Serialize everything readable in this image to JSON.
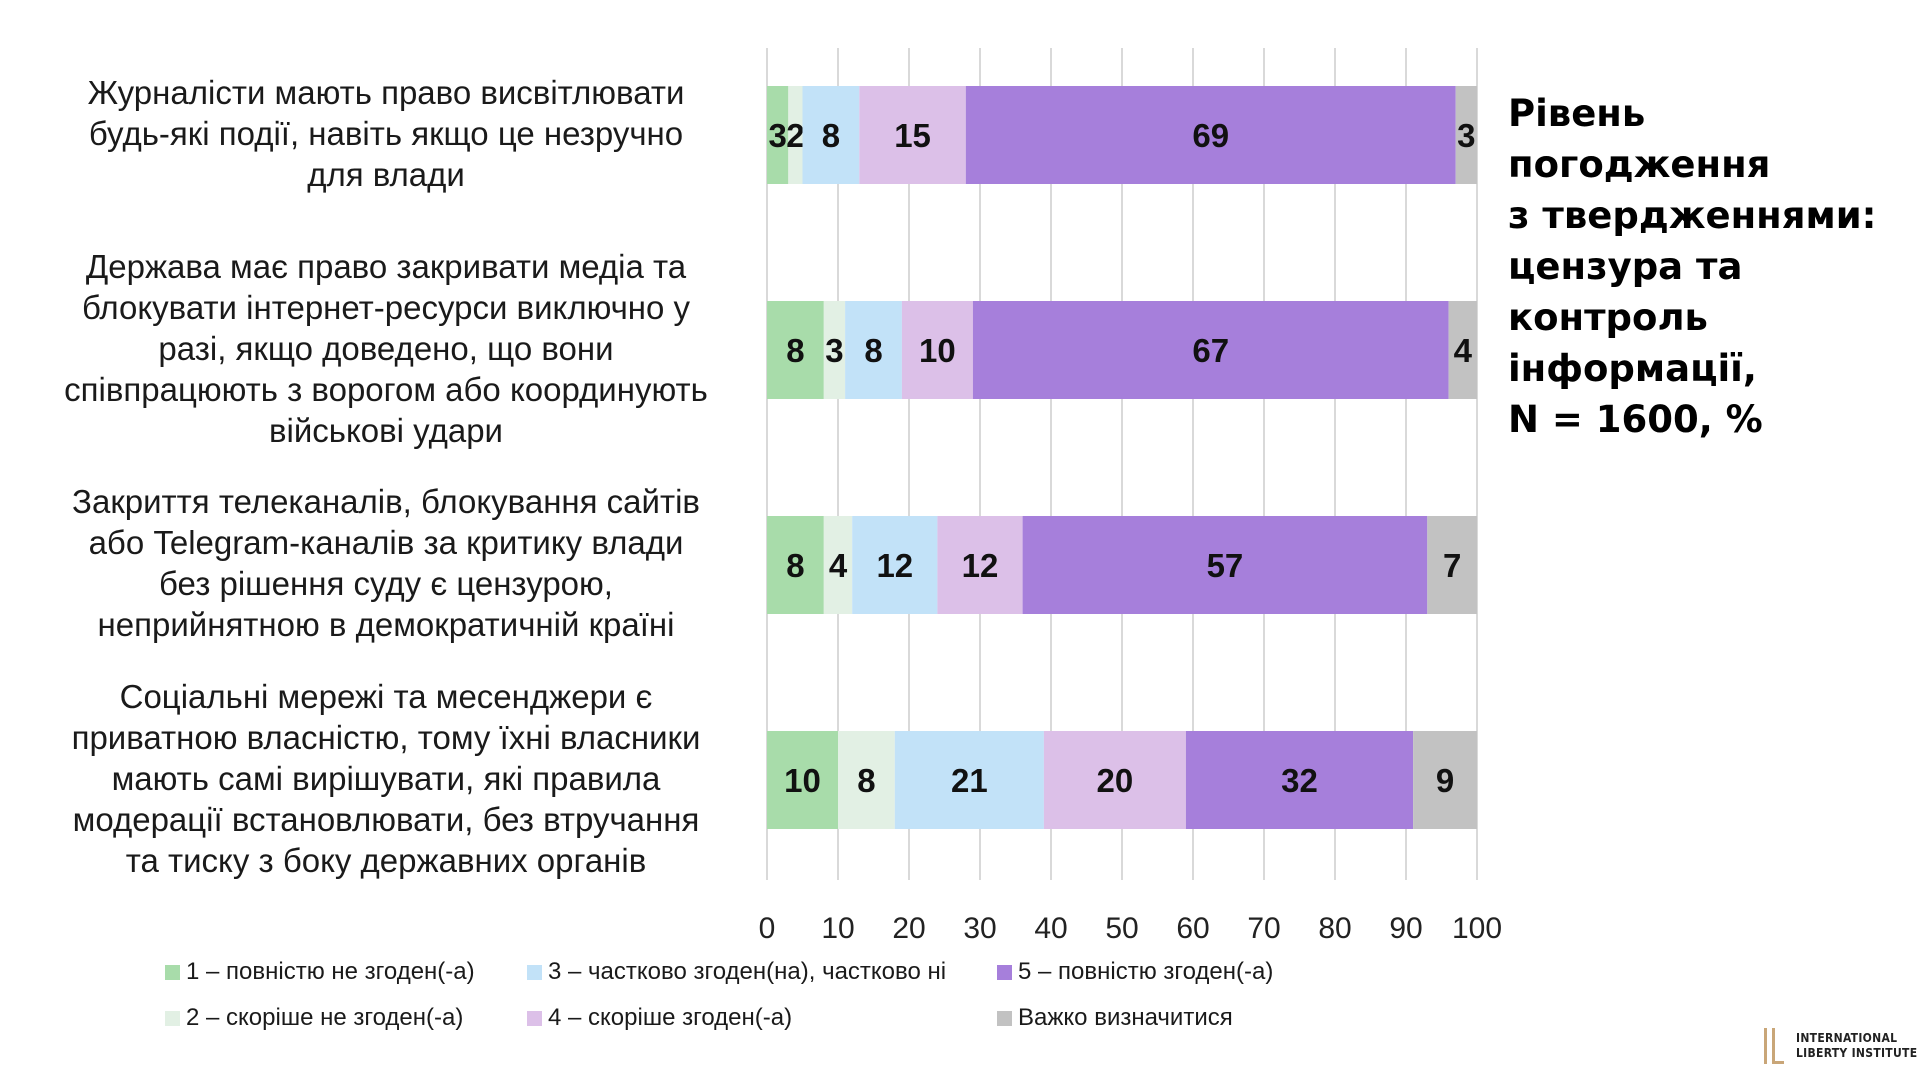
{
  "chart_data": {
    "type": "bar",
    "orientation": "horizontal",
    "stacked": true,
    "title": "Рівень погодження\nз твердженнями:\nцензура та\nконтроль\nінформації,\nN = 1600, %",
    "categories": [
      "Журналісти мають право висвітлювати\nбудь-які події, навіть якщо це незручно\nдля влади",
      "Держава має право закривати медіа та\nблокувати інтернет-ресурси виключно у\nразі, якщо доведено, що вони\nспівпрацюють з ворогом або координують\nвійськові удари",
      "Закриття телеканалів, блокування сайтів\nабо Telegram-каналів за критику влади\nбез рішення суду є цензурою,\nнеприйнятною в демократичній країні",
      "Соціальні мережі та месенджери є\nприватною власністю, тому їхні власники\nмають самі вирішувати, які правила\nмодерації встановлювати, без втручання\nта тиску з боку державних органів"
    ],
    "series": [
      {
        "name": "1 – повністю не згоден(-а)",
        "color": "#a8dcaa",
        "values": [
          3,
          8,
          8,
          10
        ]
      },
      {
        "name": "2 – скоріше не згоден(-а)",
        "color": "#e2f0e4",
        "values": [
          2,
          3,
          4,
          8
        ]
      },
      {
        "name": "3 – частково згоден(на), частково ні",
        "color": "#c2e2f8",
        "values": [
          8,
          8,
          12,
          21
        ]
      },
      {
        "name": "4 – скоріше згоден(-а)",
        "color": "#dcc0e8",
        "values": [
          15,
          10,
          12,
          20
        ]
      },
      {
        "name": "5 – повністю згоден(-а)",
        "color": "#a67fdb",
        "values": [
          69,
          67,
          57,
          32
        ]
      },
      {
        "name": "Важко визначитися",
        "color": "#c2c2c2",
        "values": [
          3,
          4,
          7,
          9
        ]
      }
    ],
    "xlim": [
      0,
      100
    ],
    "xticks": [
      "0",
      "10",
      "20",
      "30",
      "40",
      "50",
      "60",
      "70",
      "80",
      "90",
      "100"
    ],
    "grid": true,
    "legend_position": "bottom"
  },
  "branding": {
    "logo_text": "INTERNATIONAL\nLIBERTY INSTITUTE",
    "logo_color": "#c9a678"
  }
}
